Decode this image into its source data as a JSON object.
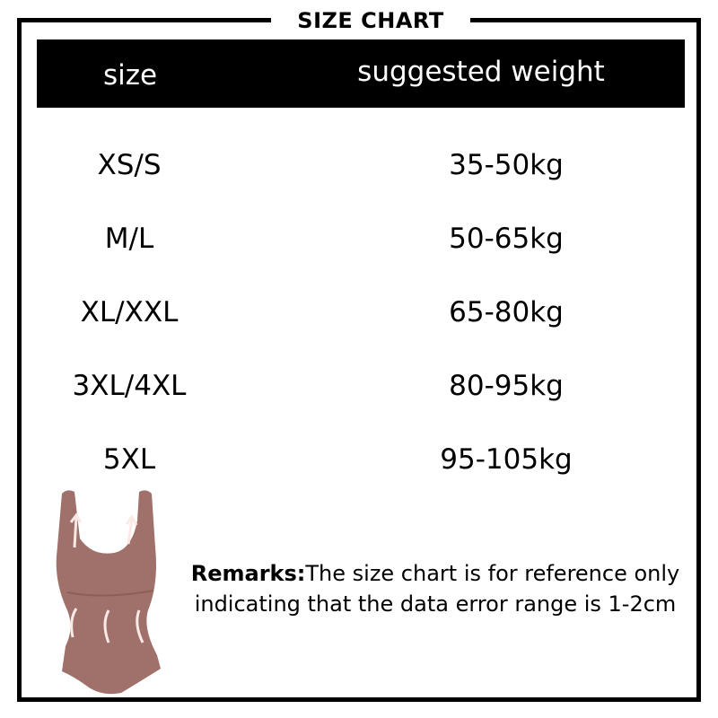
{
  "title": "SIZE  CHART",
  "table": {
    "headers": [
      "size",
      "suggested  weight"
    ],
    "rows": [
      [
        "XS/S",
        "35-50kg"
      ],
      [
        "M/L",
        "50-65kg"
      ],
      [
        "XL/XXL",
        "65-80kg"
      ],
      [
        "3XL/4XL",
        "80-95kg"
      ],
      [
        "5XL",
        "95-105kg"
      ]
    ]
  },
  "remarks": {
    "label": "Remarks:",
    "line1": "The size chart is for reference only",
    "line2": "indicating that the data error range is 1-2cm"
  },
  "colors": {
    "garment": "#a0716a",
    "arrows": "#fbe9e6"
  }
}
